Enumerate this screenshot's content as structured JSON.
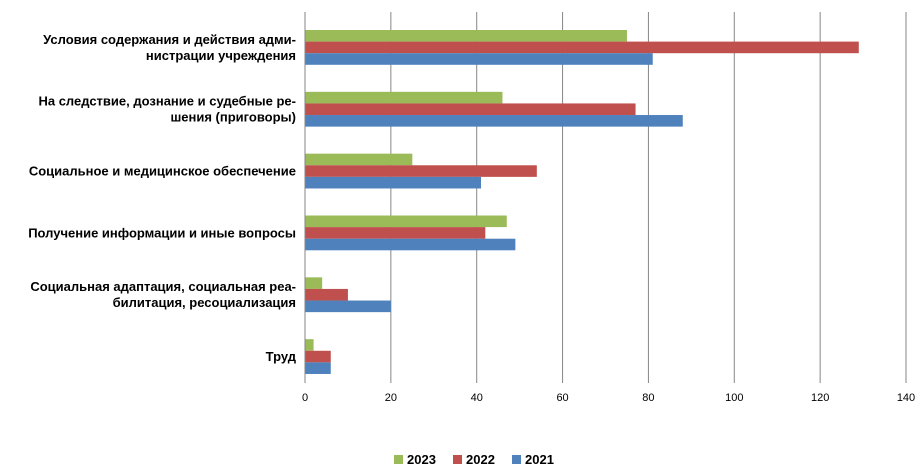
{
  "chart_data": {
    "type": "bar",
    "orientation": "horizontal",
    "categories": [
      [
        "Условия содержания и действия адми-",
        "нистрации учреждения"
      ],
      [
        "На следствие, дознание и судебные ре-",
        "шения (приговоры)"
      ],
      [
        "Социальное и медицинское обеспечение"
      ],
      [
        "Получение информации и иные вопросы"
      ],
      [
        "Социальная адаптация, социальная реа-",
        "билитация, ресоциализация"
      ],
      [
        "Труд"
      ]
    ],
    "series": [
      {
        "name": "2023",
        "color": "#9BBB59",
        "values": [
          75,
          46,
          25,
          47,
          4,
          2
        ]
      },
      {
        "name": "2022",
        "color": "#C0504D",
        "values": [
          129,
          77,
          54,
          42,
          10,
          6
        ]
      },
      {
        "name": "2021",
        "color": "#4F81BD",
        "values": [
          81,
          88,
          41,
          49,
          20,
          6
        ]
      }
    ],
    "xlim": [
      0,
      140
    ],
    "xticks": [
      0,
      20,
      40,
      60,
      80,
      100,
      120,
      140
    ],
    "grid": true,
    "legend_position": "bottom"
  }
}
